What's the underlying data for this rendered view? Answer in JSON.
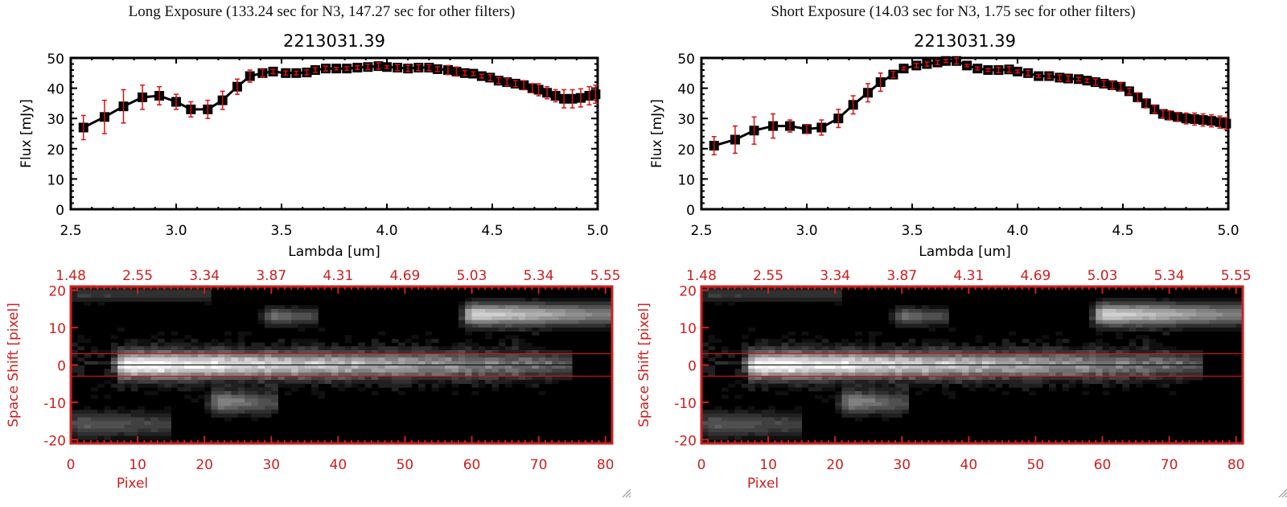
{
  "panels": [
    {
      "title": "Long Exposure (133.24 sec for N3, 147.27 sec for other filters)"
    },
    {
      "title": "Short Exposure (14.03 sec for N3, 1.75 sec for other filters)"
    }
  ],
  "colors": {
    "axis_red": "#cc2020",
    "errorbar_red": "#e01010",
    "line_black": "#000000"
  },
  "chart_data": [
    {
      "type": "line",
      "panel": "long",
      "title": "2213031.39",
      "xlabel": "Lambda [um]",
      "ylabel": "Flux [mJy]",
      "xlim": [
        2.5,
        5.0
      ],
      "ylim": [
        0,
        50
      ],
      "xticks": [
        "2.5",
        "3.0",
        "3.5",
        "4.0",
        "4.5",
        "5.0"
      ],
      "xtick_values": [
        2.5,
        3.0,
        3.5,
        4.0,
        4.5,
        5.0
      ],
      "yticks": [
        "0",
        "10",
        "20",
        "30",
        "40",
        "50"
      ],
      "ytick_values": [
        0,
        10,
        20,
        30,
        40,
        50
      ],
      "grid": false,
      "series": [
        {
          "name": "flux",
          "x": [
            2.56,
            2.66,
            2.75,
            2.84,
            2.92,
            3.0,
            3.07,
            3.15,
            3.22,
            3.29,
            3.35,
            3.41,
            3.46,
            3.52,
            3.57,
            3.62,
            3.66,
            3.71,
            3.76,
            3.81,
            3.86,
            3.91,
            3.96,
            4.0,
            4.05,
            4.1,
            4.15,
            4.2,
            4.24,
            4.29,
            4.33,
            4.37,
            4.41,
            4.45,
            4.49,
            4.53,
            4.57,
            4.61,
            4.65,
            4.69,
            4.72,
            4.76,
            4.8,
            4.84,
            4.88,
            4.92,
            4.96,
            4.99
          ],
          "y": [
            27.0,
            30.5,
            34.0,
            37.0,
            37.5,
            35.5,
            33.0,
            33.0,
            36.0,
            40.5,
            44.0,
            45.0,
            45.5,
            45.0,
            45.0,
            45.2,
            46.0,
            46.5,
            46.5,
            46.5,
            46.8,
            47.0,
            47.3,
            47.0,
            46.8,
            46.5,
            46.8,
            46.8,
            46.3,
            46.0,
            45.5,
            45.0,
            44.8,
            44.0,
            43.5,
            42.5,
            42.0,
            41.5,
            41.0,
            40.0,
            39.5,
            38.5,
            37.5,
            36.5,
            36.5,
            36.8,
            37.5,
            38.0
          ],
          "yerr": [
            4.0,
            5.5,
            5.5,
            4.0,
            3.0,
            2.5,
            2.5,
            3.0,
            3.0,
            2.5,
            2.0,
            1.2,
            0.7,
            0.7,
            0.6,
            0.8,
            0.8,
            0.8,
            0.4,
            0.6,
            0.6,
            0.9,
            1.0,
            0.4,
            1.0,
            1.0,
            1.0,
            1.0,
            0.8,
            1.5,
            1.5,
            0.8,
            0.6,
            0.6,
            1.0,
            1.0,
            1.2,
            1.0,
            1.5,
            1.5,
            2.0,
            2.0,
            2.0,
            3.0,
            3.0,
            3.0,
            3.0,
            3.0
          ]
        }
      ]
    },
    {
      "type": "line",
      "panel": "short",
      "title": "2213031.39",
      "xlabel": "Lambda [um]",
      "ylabel": "Flux [mJy]",
      "xlim": [
        2.5,
        5.0
      ],
      "ylim": [
        0,
        50
      ],
      "xticks": [
        "2.5",
        "3.0",
        "3.5",
        "4.0",
        "4.5",
        "5.0"
      ],
      "xtick_values": [
        2.5,
        3.0,
        3.5,
        4.0,
        4.5,
        5.0
      ],
      "yticks": [
        "0",
        "10",
        "20",
        "30",
        "40",
        "50"
      ],
      "ytick_values": [
        0,
        10,
        20,
        30,
        40,
        50
      ],
      "grid": false,
      "series": [
        {
          "name": "flux",
          "x": [
            2.56,
            2.66,
            2.75,
            2.84,
            2.92,
            3.0,
            3.07,
            3.15,
            3.22,
            3.29,
            3.35,
            3.41,
            3.46,
            3.52,
            3.57,
            3.62,
            3.66,
            3.71,
            3.76,
            3.81,
            3.86,
            3.91,
            3.96,
            4.0,
            4.05,
            4.1,
            4.15,
            4.2,
            4.24,
            4.29,
            4.33,
            4.37,
            4.41,
            4.45,
            4.49,
            4.53,
            4.57,
            4.61,
            4.65,
            4.69,
            4.72,
            4.76,
            4.8,
            4.84,
            4.88,
            4.92,
            4.96,
            4.99
          ],
          "y": [
            21.0,
            23.0,
            26.0,
            27.5,
            27.5,
            26.5,
            27.0,
            30.0,
            34.5,
            38.5,
            42.0,
            44.5,
            46.5,
            47.5,
            48.0,
            48.5,
            49.0,
            49.0,
            47.5,
            46.5,
            46.0,
            46.0,
            46.2,
            45.5,
            45.0,
            44.0,
            44.0,
            43.5,
            43.2,
            43.0,
            42.5,
            42.0,
            41.5,
            41.0,
            40.5,
            39.0,
            37.0,
            35.0,
            33.0,
            31.5,
            31.0,
            30.5,
            30.0,
            29.8,
            29.5,
            29.2,
            28.8,
            28.3
          ],
          "yerr": [
            3.0,
            4.5,
            4.5,
            4.0,
            2.0,
            1.5,
            2.5,
            3.0,
            3.0,
            3.0,
            3.0,
            1.0,
            0.5,
            0.7,
            0.7,
            0.7,
            0.5,
            1.0,
            0.4,
            0.5,
            0.5,
            0.9,
            0.9,
            0.5,
            0.9,
            0.5,
            0.7,
            0.9,
            0.9,
            0.6,
            0.6,
            1.0,
            1.0,
            1.2,
            1.2,
            1.0,
            1.5,
            1.5,
            1.2,
            1.2,
            1.5,
            1.5,
            1.8,
            2.0,
            2.0,
            2.0,
            2.0,
            2.0
          ]
        }
      ]
    },
    {
      "type": "heatmap",
      "panel": "long",
      "xlabel": "Pixel",
      "ylabel": "Space Shift [pixel]",
      "xlim": [
        0,
        81
      ],
      "ylim": [
        -21,
        21
      ],
      "xticks": [
        "0",
        "10",
        "20",
        "30",
        "40",
        "50",
        "60",
        "70",
        "80"
      ],
      "xtick_values": [
        0,
        10,
        20,
        30,
        40,
        50,
        60,
        70,
        80
      ],
      "yticks": [
        "-20",
        "-10",
        "0",
        "10",
        "20"
      ],
      "ytick_values": [
        -20,
        -10,
        0,
        10,
        20
      ],
      "top_axis_label_ticks": [
        "1.48",
        "2.55",
        "3.34",
        "3.87",
        "4.31",
        "4.69",
        "5.03",
        "5.34",
        "5.55"
      ],
      "aperture_lines": [
        -3,
        3
      ],
      "center_line": 0,
      "sources": [
        {
          "x0": 8,
          "x1": 74,
          "y": 0,
          "peak": 1.0,
          "fade": 0.68,
          "width": 2.4
        },
        {
          "x0": 60,
          "x1": 81,
          "y": 13.5,
          "peak": 0.85,
          "fade": 0.45,
          "width": 2.0
        },
        {
          "x0": 22,
          "x1": 30,
          "y": -10,
          "peak": 0.55,
          "fade": 0.5,
          "width": 2.0
        },
        {
          "x0": 30,
          "x1": 36,
          "y": 13,
          "peak": 0.45,
          "fade": 0.4,
          "width": 1.5
        },
        {
          "x0": 1,
          "x1": 14,
          "y": -16,
          "peak": 0.35,
          "fade": 0.3,
          "width": 2.2
        },
        {
          "x0": 1,
          "x1": 20,
          "y": 19,
          "peak": 0.22,
          "fade": 0.2,
          "width": 1.5
        }
      ]
    },
    {
      "type": "heatmap",
      "panel": "short",
      "xlabel": "Pixel",
      "ylabel": "Space Shift [pixel]",
      "xlim": [
        0,
        81
      ],
      "ylim": [
        -21,
        21
      ],
      "xticks": [
        "0",
        "10",
        "20",
        "30",
        "40",
        "50",
        "60",
        "70",
        "80"
      ],
      "xtick_values": [
        0,
        10,
        20,
        30,
        40,
        50,
        60,
        70,
        80
      ],
      "yticks": [
        "-20",
        "-10",
        "0",
        "10",
        "20"
      ],
      "ytick_values": [
        -20,
        -10,
        0,
        10,
        20
      ],
      "top_axis_label_ticks": [
        "1.48",
        "2.55",
        "3.34",
        "3.87",
        "4.31",
        "4.69",
        "5.03",
        "5.34",
        "5.55"
      ],
      "aperture_lines": [
        -3,
        3
      ],
      "center_line": 0,
      "sources": [
        {
          "x0": 8,
          "x1": 74,
          "y": 0,
          "peak": 1.0,
          "fade": 0.68,
          "width": 2.4
        },
        {
          "x0": 60,
          "x1": 81,
          "y": 13.5,
          "peak": 0.85,
          "fade": 0.45,
          "width": 2.0
        },
        {
          "x0": 22,
          "x1": 30,
          "y": -10,
          "peak": 0.55,
          "fade": 0.5,
          "width": 2.0
        },
        {
          "x0": 30,
          "x1": 36,
          "y": 13,
          "peak": 0.45,
          "fade": 0.4,
          "width": 1.5
        },
        {
          "x0": 1,
          "x1": 14,
          "y": -16,
          "peak": 0.35,
          "fade": 0.3,
          "width": 2.2
        },
        {
          "x0": 1,
          "x1": 20,
          "y": 19,
          "peak": 0.22,
          "fade": 0.2,
          "width": 1.5
        }
      ]
    }
  ]
}
